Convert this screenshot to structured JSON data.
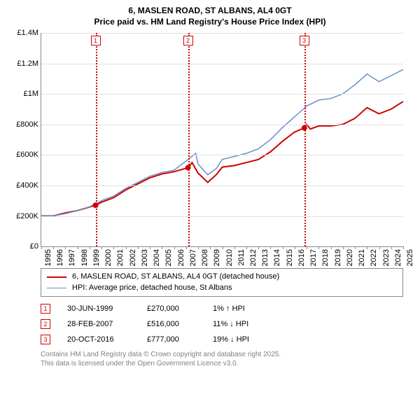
{
  "title_line1": "6, MASLEN ROAD, ST ALBANS, AL4 0GT",
  "title_line2": "Price paid vs. HM Land Registry's House Price Index (HPI)",
  "chart": {
    "type": "line",
    "x_domain": [
      1995,
      2025
    ],
    "y_domain": [
      0,
      1400000
    ],
    "y_ticks": [
      0,
      200000,
      400000,
      600000,
      800000,
      1000000,
      1200000,
      1400000
    ],
    "y_tick_labels": [
      "£0",
      "£200K",
      "£400K",
      "£600K",
      "£800K",
      "£1M",
      "£1.2M",
      "£1.4M"
    ],
    "x_ticks": [
      1995,
      1996,
      1997,
      1998,
      1999,
      2000,
      2001,
      2002,
      2003,
      2004,
      2005,
      2006,
      2007,
      2008,
      2009,
      2010,
      2011,
      2012,
      2013,
      2014,
      2015,
      2016,
      2017,
      2018,
      2019,
      2020,
      2021,
      2022,
      2023,
      2024,
      2025
    ],
    "grid_color": "#e0e0e0",
    "background_color": "#ffffff",
    "axis_color": "#888888",
    "label_fontsize": 11,
    "series": [
      {
        "label": "6, MASLEN ROAD, ST ALBANS, AL4 0GT (detached house)",
        "color": "#d00000",
        "line_width": 2,
        "data": [
          [
            1995,
            200000
          ],
          [
            1996,
            200000
          ],
          [
            1997,
            220000
          ],
          [
            1998,
            235000
          ],
          [
            1999.5,
            270000
          ],
          [
            2000,
            290000
          ],
          [
            2001,
            320000
          ],
          [
            2002,
            370000
          ],
          [
            2003,
            410000
          ],
          [
            2004,
            450000
          ],
          [
            2005,
            475000
          ],
          [
            2006,
            490000
          ],
          [
            2007.16,
            516000
          ],
          [
            2007.5,
            550000
          ],
          [
            2008,
            480000
          ],
          [
            2008.8,
            420000
          ],
          [
            2009.5,
            470000
          ],
          [
            2010,
            520000
          ],
          [
            2011,
            530000
          ],
          [
            2012,
            550000
          ],
          [
            2013,
            570000
          ],
          [
            2014,
            620000
          ],
          [
            2015,
            690000
          ],
          [
            2016,
            750000
          ],
          [
            2016.8,
            777000
          ],
          [
            2017,
            800000
          ],
          [
            2017.3,
            770000
          ],
          [
            2018,
            790000
          ],
          [
            2019,
            790000
          ],
          [
            2020,
            800000
          ],
          [
            2021,
            840000
          ],
          [
            2022,
            910000
          ],
          [
            2023,
            870000
          ],
          [
            2024,
            900000
          ],
          [
            2025,
            950000
          ]
        ]
      },
      {
        "label": "HPI: Average price, detached house, St Albans",
        "color": "#6a8fc8",
        "line_width": 1.5,
        "data": [
          [
            1995,
            200000
          ],
          [
            1996,
            200000
          ],
          [
            1997,
            215000
          ],
          [
            1998,
            235000
          ],
          [
            1999,
            260000
          ],
          [
            2000,
            300000
          ],
          [
            2001,
            330000
          ],
          [
            2002,
            380000
          ],
          [
            2003,
            420000
          ],
          [
            2004,
            460000
          ],
          [
            2005,
            485000
          ],
          [
            2006,
            500000
          ],
          [
            2007,
            560000
          ],
          [
            2007.8,
            610000
          ],
          [
            2008,
            540000
          ],
          [
            2008.8,
            470000
          ],
          [
            2009.5,
            510000
          ],
          [
            2010,
            570000
          ],
          [
            2011,
            590000
          ],
          [
            2012,
            610000
          ],
          [
            2013,
            640000
          ],
          [
            2014,
            700000
          ],
          [
            2015,
            780000
          ],
          [
            2016,
            850000
          ],
          [
            2017,
            920000
          ],
          [
            2018,
            960000
          ],
          [
            2019,
            970000
          ],
          [
            2020,
            1000000
          ],
          [
            2021,
            1060000
          ],
          [
            2022,
            1130000
          ],
          [
            2023,
            1080000
          ],
          [
            2024,
            1120000
          ],
          [
            2025,
            1160000
          ]
        ]
      }
    ],
    "markers": [
      {
        "num": "1",
        "x": 1999.5,
        "y": 270000
      },
      {
        "num": "2",
        "x": 2007.16,
        "y": 516000
      },
      {
        "num": "3",
        "x": 2016.8,
        "y": 777000
      }
    ],
    "marker_color": "#d00000"
  },
  "transactions": [
    {
      "num": "1",
      "date": "30-JUN-1999",
      "price": "£270,000",
      "delta": "1% ↑ HPI"
    },
    {
      "num": "2",
      "date": "28-FEB-2007",
      "price": "£516,000",
      "delta": "11% ↓ HPI"
    },
    {
      "num": "3",
      "date": "20-OCT-2016",
      "price": "£777,000",
      "delta": "19% ↓ HPI"
    }
  ],
  "footer_line1": "Contains HM Land Registry data © Crown copyright and database right 2025.",
  "footer_line2": "This data is licensed under the Open Government Licence v3.0."
}
